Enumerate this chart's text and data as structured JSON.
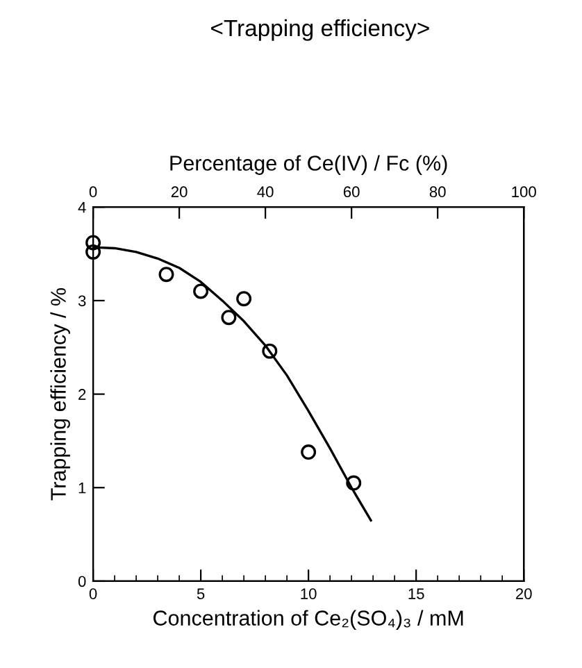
{
  "chart_data": {
    "type": "scatter",
    "title": "<Trapping efficiency>",
    "xlabel": "Concentration of Ce₂(SO₄)₃ / mM",
    "ylabel": "Trapping efficiency / %",
    "x2label": "Percentage of Ce(IV) / Fc (%)",
    "xlim": [
      0,
      20
    ],
    "xticks": [
      0,
      5,
      10,
      15,
      20
    ],
    "ylim": [
      0,
      4
    ],
    "yticks": [
      0,
      1,
      2,
      3,
      4
    ],
    "x2lim": [
      0,
      100
    ],
    "x2ticks": [
      0,
      20,
      40,
      60,
      80,
      100
    ],
    "series": [
      {
        "color": "#000000",
        "marker": "circle",
        "x": [
          0,
          0,
          3.4,
          5.0,
          6.3,
          7.0,
          8.2,
          10.0,
          12.1
        ],
        "values": [
          3.62,
          3.52,
          3.28,
          3.1,
          2.82,
          3.02,
          2.46,
          1.38,
          1.05
        ]
      },
      {
        "type": "line",
        "color": "#000000",
        "marker": "none",
        "line_style": "solid",
        "x": [
          0,
          1,
          2,
          3,
          4,
          5,
          6,
          7,
          8,
          9,
          10,
          11,
          12,
          12.9
        ],
        "values": [
          3.57,
          3.56,
          3.52,
          3.45,
          3.35,
          3.2,
          3.0,
          2.78,
          2.52,
          2.2,
          1.82,
          1.42,
          1.0,
          0.65
        ]
      }
    ],
    "grid": false,
    "legend": false
  }
}
